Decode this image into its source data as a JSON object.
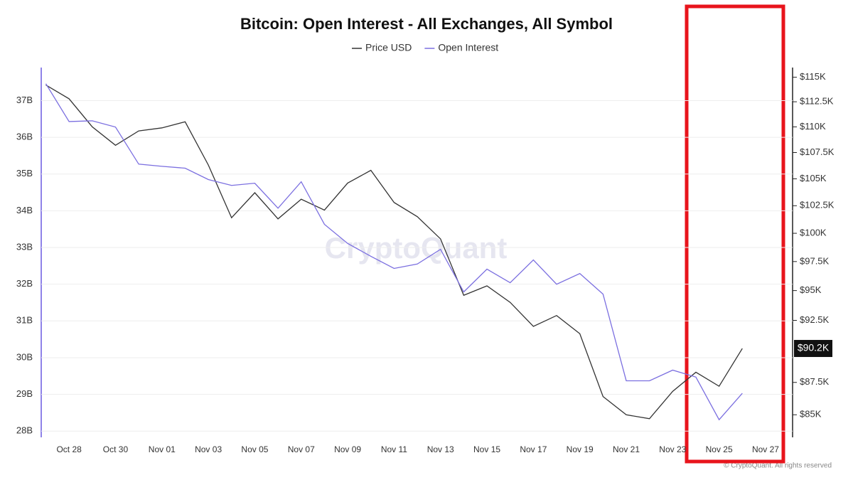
{
  "chart_data": {
    "type": "line",
    "title": "Bitcoin: Open Interest - All Exchanges, All Symbol",
    "watermark": "CryptoQuant",
    "footer": "© CryptoQuant. All rights reserved",
    "categories": [
      null,
      "Oct 28",
      null,
      "Oct 30",
      null,
      "Nov 01",
      null,
      "Nov 03",
      null,
      "Nov 05",
      null,
      "Nov 07",
      null,
      "Nov 09",
      null,
      "Nov 11",
      null,
      "Nov 13",
      null,
      "Nov 15",
      null,
      "Nov 17",
      null,
      "Nov 19",
      null,
      "Nov 21",
      null,
      "Nov 23",
      null,
      "Nov 25",
      null,
      "Nov 27"
    ],
    "series": [
      {
        "name": "Price USD",
        "color": "#333333",
        "axis": "y2",
        "values": [
          114200,
          112800,
          110000,
          108200,
          109600,
          109900,
          110500,
          106300,
          101400,
          103700,
          101300,
          103100,
          102100,
          104600,
          105800,
          102800,
          101500,
          99500,
          94600,
          95400,
          94000,
          92000,
          92900,
          91400,
          86400,
          85000,
          84700,
          86800,
          88300,
          87200,
          90200,
          null
        ]
      },
      {
        "name": "Open Interest",
        "color": "#7b6fe0",
        "axis": "y",
        "values": [
          37.46,
          36.43,
          36.45,
          36.28,
          35.27,
          35.21,
          35.16,
          34.85,
          34.69,
          34.75,
          34.07,
          34.79,
          33.63,
          33.11,
          32.76,
          32.43,
          32.55,
          32.95,
          31.79,
          32.41,
          32.04,
          32.66,
          32.0,
          32.29,
          31.73,
          29.37,
          29.37,
          29.66,
          29.47,
          28.31,
          29.03,
          null
        ]
      }
    ],
    "ylim": [
      27.83,
      37.9
    ],
    "yticks": [
      {
        "value": 28,
        "label": "28B"
      },
      {
        "value": 29,
        "label": "29B"
      },
      {
        "value": 30,
        "label": "30B"
      },
      {
        "value": 31,
        "label": "31B"
      },
      {
        "value": 32,
        "label": "32B"
      },
      {
        "value": 33,
        "label": "33B"
      },
      {
        "value": 34,
        "label": "34B"
      },
      {
        "value": 35,
        "label": "35B"
      },
      {
        "value": 36,
        "label": "36B"
      },
      {
        "value": 37,
        "label": "37B"
      }
    ],
    "y2lim": [
      83300,
      116000
    ],
    "y2_log": true,
    "y2ticks": [
      {
        "value": 85000,
        "label": "$85K"
      },
      {
        "value": 87500,
        "label": "$87.5K"
      },
      {
        "value": 92500,
        "label": "$92.5K"
      },
      {
        "value": 95000,
        "label": "$95K"
      },
      {
        "value": 97500,
        "label": "$97.5K"
      },
      {
        "value": 100000,
        "label": "$100K"
      },
      {
        "value": 102500,
        "label": "$102.5K"
      },
      {
        "value": 105000,
        "label": "$105K"
      },
      {
        "value": 107500,
        "label": "$107.5K"
      },
      {
        "value": 110000,
        "label": "$110K"
      },
      {
        "value": 112500,
        "label": "$112.5K"
      },
      {
        "value": 115000,
        "label": "$115K"
      }
    ],
    "annotations": [
      {
        "label": "$90.2K",
        "value": 90200,
        "axis": "y2"
      }
    ],
    "grid": true,
    "legend": "top"
  }
}
